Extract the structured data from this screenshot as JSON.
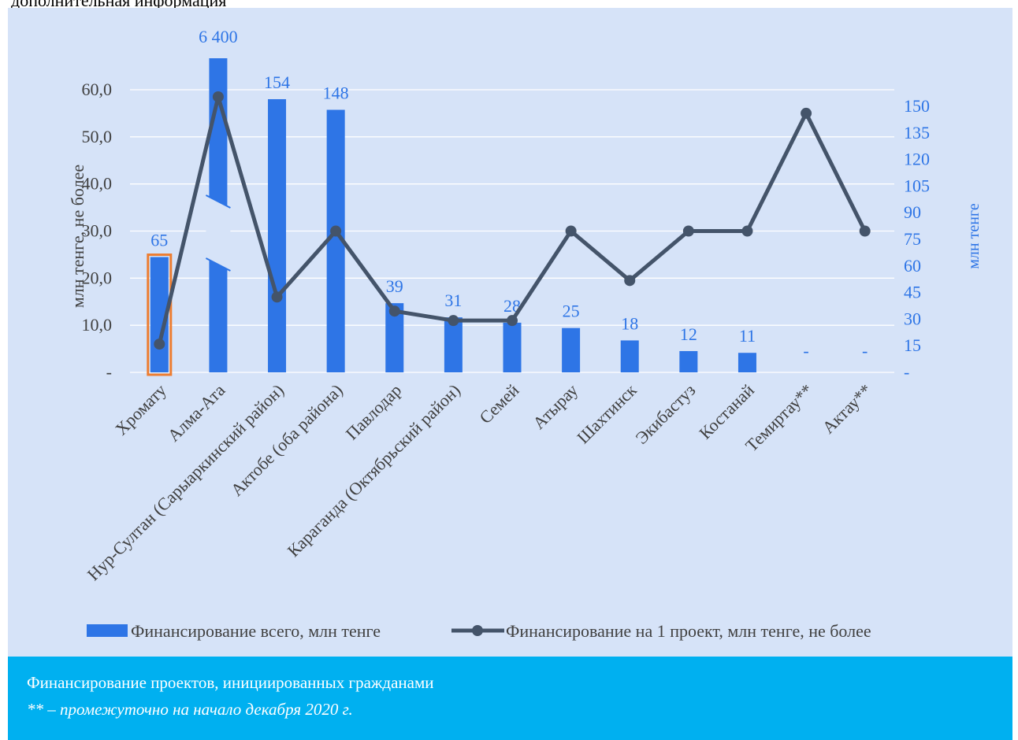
{
  "top_fragment_text": "дополнительная информация",
  "caption": {
    "title": "Финансирование проектов, инициированных гражданами",
    "note": "** – промежуточно на начало декабря 2020 г."
  },
  "colors": {
    "panel_bg": "#d6e3f8",
    "bar": "#2e75e6",
    "line": "#44546a",
    "right_axis": "#2e75e6",
    "highlight": "#ed7d31",
    "caption_bg": "#00b0f0"
  },
  "chart_data": {
    "type": "bar+line",
    "categories": [
      "Хромату",
      "Алма-Ата",
      "Нур-Султан (Сарыаркинский район)",
      "Актобе (оба района)",
      "Павлодар",
      "Караганда (Октябрьский район)",
      "Семей",
      "Атырау",
      "Шахтинск",
      "Экибастуз",
      "Костанай",
      "Темиртау**",
      "Актау**"
    ],
    "left_axis": {
      "label": "млн тенге, не более",
      "ticks": [
        "-",
        "10,0",
        "20,0",
        "30,0",
        "40,0",
        "50,0",
        "60,0"
      ],
      "range": [
        0,
        60
      ]
    },
    "right_axis": {
      "label": "млн тенге",
      "ticks": [
        "-",
        "15",
        "30",
        "45",
        "60",
        "75",
        "90",
        "105",
        "120",
        "135",
        "150"
      ],
      "range": [
        0,
        150
      ]
    },
    "series": [
      {
        "name": "Финансирование всего, млн тенге",
        "type": "bar",
        "axis": "right",
        "values": [
          65,
          6400,
          154,
          148,
          39,
          31,
          28,
          25,
          18,
          12,
          11,
          0,
          0
        ],
        "labels": [
          "65",
          "6 400",
          "154",
          "148",
          "39",
          "31",
          "28",
          "25",
          "18",
          "12",
          "11",
          "-",
          "-"
        ],
        "axis_break": "Алма-Ата"
      },
      {
        "name": "Финансирование на 1 проект, млн тенге, не более",
        "type": "line",
        "axis": "left",
        "values": [
          6,
          58.5,
          16,
          30,
          13,
          11,
          11,
          30,
          19.5,
          30,
          30,
          55,
          30
        ]
      }
    ],
    "highlighted_category": "Хромату",
    "legend_position": "bottom"
  }
}
